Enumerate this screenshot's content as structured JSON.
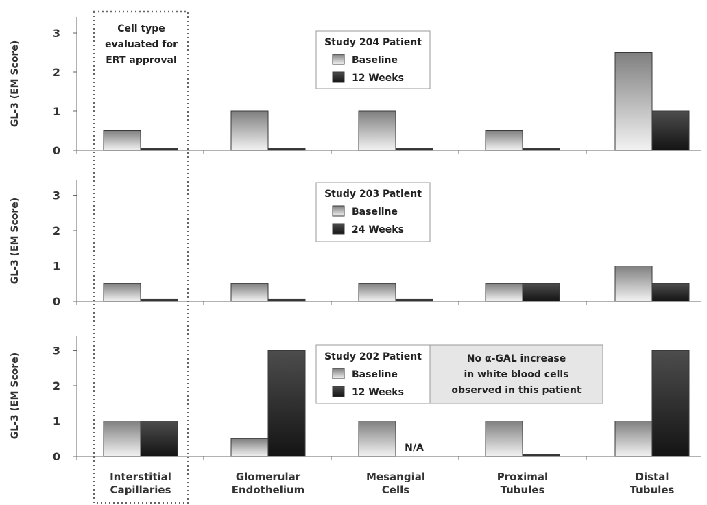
{
  "colors": {
    "baseline_top": "#7f7f7f",
    "baseline_bottom": "#f2f2f2",
    "followup_top": "#4d4d4d",
    "followup_bottom": "#141414",
    "axis": "#666666",
    "note_bg": "#e6e6e6"
  },
  "cell_type_annotation": [
    "Cell type",
    "evaluated for",
    "ERT approval"
  ],
  "note_box": [
    "No α-GAL increase",
    "in white blood cells",
    "observed in this patient"
  ],
  "chart_data": [
    {
      "type": "bar",
      "categories": [
        "Interstitial Capillaries",
        "Glomerular Endothelium",
        "Mesangial Cells",
        "Proximal Tubules",
        "Distal Tubules"
      ],
      "category_lines": [
        [
          "Interstitial",
          "Capillaries"
        ],
        [
          "Glomerular",
          "Endothelium"
        ],
        [
          "Mesangial",
          "Cells"
        ],
        [
          "Proximal",
          "Tubules"
        ],
        [
          "Distal",
          "Tubules"
        ]
      ],
      "legend_title": "Study 204 Patient",
      "series": [
        {
          "name": "Baseline",
          "values": [
            0.5,
            1.0,
            1.0,
            0.5,
            2.5
          ]
        },
        {
          "name": "12 Weeks",
          "values": [
            0.05,
            0.05,
            0.05,
            0.05,
            1.0
          ]
        }
      ],
      "ylabel": "GL-3 (EM Score)",
      "ylim": [
        0,
        3.3
      ],
      "yticks": [
        0,
        1,
        2,
        3
      ]
    },
    {
      "type": "bar",
      "categories": [
        "Interstitial Capillaries",
        "Glomerular Endothelium",
        "Mesangial Cells",
        "Proximal Tubules",
        "Distal Tubules"
      ],
      "legend_title": "Study 203 Patient",
      "series": [
        {
          "name": "Baseline",
          "values": [
            0.5,
            0.5,
            0.5,
            0.5,
            1.0
          ]
        },
        {
          "name": "24 Weeks",
          "values": [
            0.05,
            0.05,
            0.05,
            0.5,
            0.5
          ]
        }
      ],
      "ylabel": "GL-3 (EM Score)",
      "ylim": [
        0,
        3.3
      ],
      "yticks": [
        0,
        1,
        2,
        3
      ]
    },
    {
      "type": "bar",
      "categories": [
        "Interstitial Capillaries",
        "Glomerular Endothelium",
        "Mesangial Cells",
        "Proximal Tubules",
        "Distal Tubules"
      ],
      "legend_title": "Study 202 Patient",
      "series": [
        {
          "name": "Baseline",
          "values": [
            1.0,
            0.5,
            1.0,
            1.0,
            1.0
          ]
        },
        {
          "name": "12 Weeks",
          "values": [
            1.0,
            3.0,
            null,
            0.05,
            3.0
          ]
        }
      ],
      "annotations": [
        {
          "category": "Mesangial Cells",
          "series": "12 Weeks",
          "text": "N/A"
        }
      ],
      "ylabel": "GL-3 (EM Score)",
      "ylim": [
        0,
        3.3
      ],
      "yticks": [
        0,
        1,
        2,
        3
      ]
    }
  ]
}
